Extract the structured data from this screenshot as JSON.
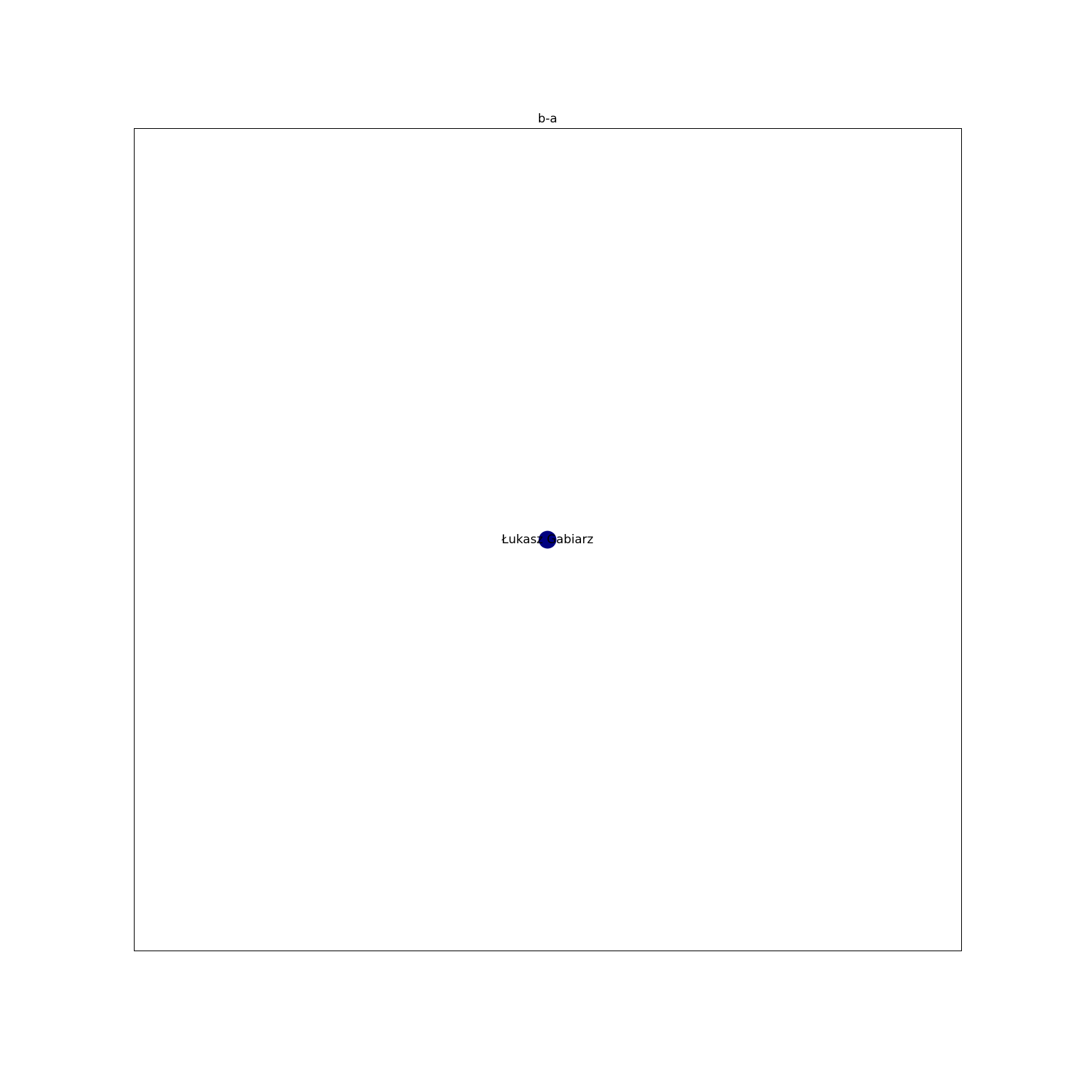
{
  "figure": {
    "title": "b-a"
  },
  "graph": {
    "nodes": [
      {
        "label": "Łukasz Gabiarz",
        "color": "#000080"
      }
    ],
    "edges": []
  },
  "colors": {
    "frame": "#000000",
    "background": "#ffffff"
  }
}
